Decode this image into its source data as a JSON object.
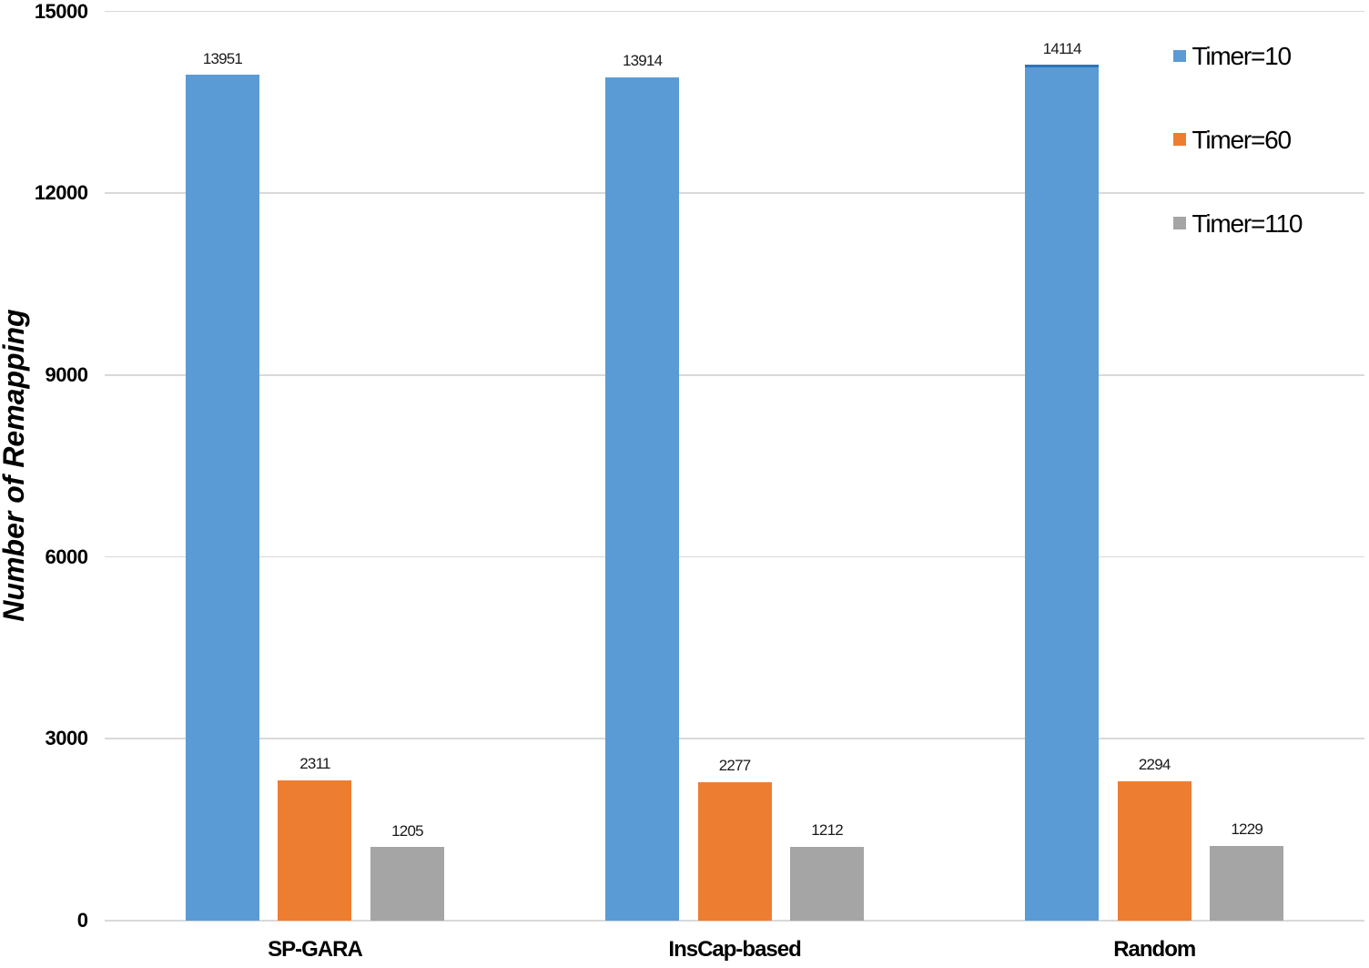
{
  "chart_data": {
    "type": "bar",
    "title": "",
    "xlabel": "",
    "ylabel": "Number of Remapping",
    "categories": [
      "SP-GARA",
      "InsCap-based",
      "Random"
    ],
    "series": [
      {
        "name": "Timer=10",
        "color": "#5B9BD5",
        "values": [
          13951,
          13914,
          14114
        ]
      },
      {
        "name": "Timer=60",
        "color": "#ED7D31",
        "values": [
          2311,
          2277,
          2294
        ]
      },
      {
        "name": "Timer=110",
        "color": "#A5A5A5",
        "values": [
          1205,
          1212,
          1229
        ]
      }
    ],
    "data_labels": [
      "13951",
      "2311",
      "1205",
      "13914",
      "2277",
      "1212",
      "14114",
      "2294",
      "1229"
    ],
    "y_axis": {
      "min": 0,
      "max": 15000,
      "tick_step": 3000,
      "tick_labels": [
        "0",
        "3000",
        "6000",
        "9000",
        "12000",
        "15000"
      ]
    },
    "grid": true,
    "legend_position": "top-right",
    "background": "#FFFFFF",
    "gridline_color": "#D9D9D9",
    "highlight_cap": {
      "category": "Random",
      "series": "Timer=10",
      "color": "#2E75B6"
    }
  }
}
